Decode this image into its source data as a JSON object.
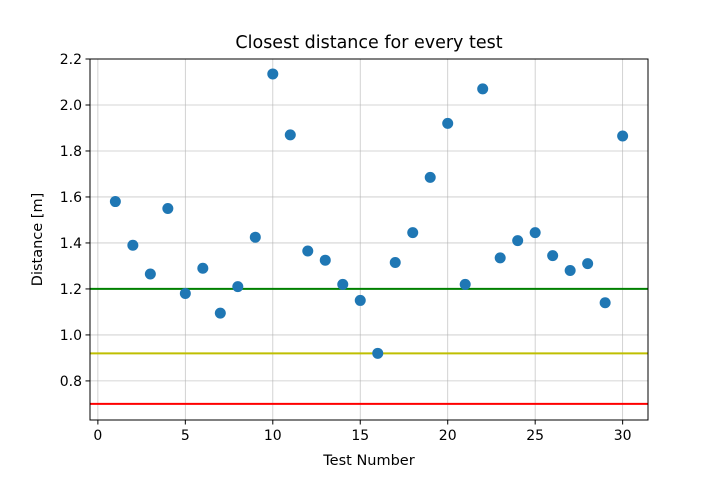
{
  "chart_data": {
    "type": "scatter",
    "title": "Closest distance for every test",
    "xlabel": "Test Number",
    "ylabel": "Distance [m]",
    "xlim": [
      -0.45,
      31.45
    ],
    "ylim": [
      0.63,
      2.2
    ],
    "xticks": [
      "0",
      "5",
      "10",
      "15",
      "20",
      "25",
      "30"
    ],
    "yticks": [
      "0.8",
      "1.0",
      "1.2",
      "1.4",
      "1.6",
      "1.8",
      "2.0",
      "2.2"
    ],
    "grid": true,
    "series": [
      {
        "color": "#1f77b4",
        "points": [
          {
            "x": 1,
            "y": 1.58
          },
          {
            "x": 2,
            "y": 1.39
          },
          {
            "x": 3,
            "y": 1.265
          },
          {
            "x": 4,
            "y": 1.55
          },
          {
            "x": 5,
            "y": 1.18
          },
          {
            "x": 6,
            "y": 1.29
          },
          {
            "x": 7,
            "y": 1.095
          },
          {
            "x": 8,
            "y": 1.21
          },
          {
            "x": 9,
            "y": 1.425
          },
          {
            "x": 10,
            "y": 2.135
          },
          {
            "x": 11,
            "y": 1.87
          },
          {
            "x": 12,
            "y": 1.365
          },
          {
            "x": 13,
            "y": 1.325
          },
          {
            "x": 14,
            "y": 1.22
          },
          {
            "x": 15,
            "y": 1.15
          },
          {
            "x": 16,
            "y": 0.92
          },
          {
            "x": 17,
            "y": 1.315
          },
          {
            "x": 18,
            "y": 1.445
          },
          {
            "x": 19,
            "y": 1.685
          },
          {
            "x": 20,
            "y": 1.92
          },
          {
            "x": 21,
            "y": 1.22
          },
          {
            "x": 22,
            "y": 2.07
          },
          {
            "x": 23,
            "y": 1.335
          },
          {
            "x": 24,
            "y": 1.41
          },
          {
            "x": 25,
            "y": 1.445
          },
          {
            "x": 26,
            "y": 1.345
          },
          {
            "x": 27,
            "y": 1.28
          },
          {
            "x": 28,
            "y": 1.31
          },
          {
            "x": 29,
            "y": 1.14
          },
          {
            "x": 30,
            "y": 1.865
          }
        ]
      }
    ],
    "hlines": [
      {
        "y": 1.2,
        "color": "#008000"
      },
      {
        "y": 0.92,
        "color": "#bfbf00"
      },
      {
        "y": 0.7,
        "color": "#ff0000"
      }
    ]
  }
}
